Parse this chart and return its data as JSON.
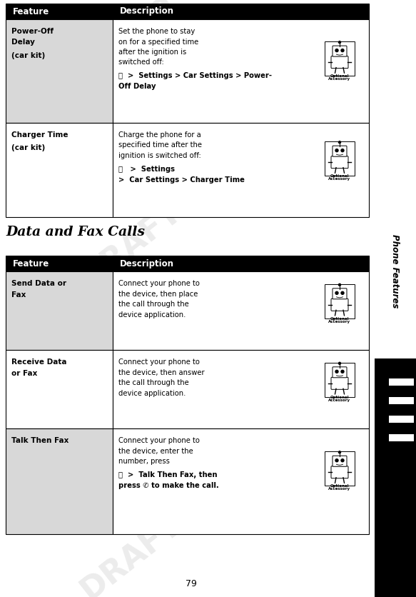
{
  "page_number": "79",
  "side_label": "Phone Features",
  "section1_rows": [
    {
      "feature_lines": [
        "Power-Off",
        "Delay",
        "",
        "(car kit)"
      ],
      "desc_normal": [
        "Set the phone to stay",
        "on for a specified time",
        "after the ignition is",
        "switched off:"
      ],
      "desc_bold_line1": "ⓢ  >  Settings > Car Settings > Power-",
      "desc_bold_line2": "Off Delay",
      "has_icon": true
    },
    {
      "feature_lines": [
        "Charger Time",
        "",
        "(car kit)"
      ],
      "desc_normal": [
        "Charge the phone for a",
        "specified time after the",
        "ignition is switched off:"
      ],
      "desc_bold_line1": "ⓢ   >  Settings",
      "desc_bold_line2": ">  Car Settings > Charger Time",
      "has_icon": true
    }
  ],
  "section_title": "Data and Fax Calls",
  "section2_rows": [
    {
      "feature_lines": [
        "Send Data or",
        "Fax"
      ],
      "desc_normal": [
        "Connect your phone to",
        "the device, then place",
        "the call through the",
        "device application."
      ],
      "desc_bold_line1": null,
      "desc_bold_line2": null,
      "has_icon": true
    },
    {
      "feature_lines": [
        "Receive Data",
        "or Fax"
      ],
      "desc_normal": [
        "Connect your phone to",
        "the device, then answer",
        "the call through the",
        "device application."
      ],
      "desc_bold_line1": null,
      "desc_bold_line2": null,
      "has_icon": true
    },
    {
      "feature_lines": [
        "Talk Then Fax"
      ],
      "desc_normal": [
        "Connect your phone to",
        "the device, enter the",
        "number, press"
      ],
      "desc_bold_line1": "ⓢ  >  Talk Then Fax, then",
      "desc_bold_line2": "press ✆ to make the call.",
      "has_icon": true
    }
  ],
  "header_bg": "#000000",
  "header_fg": "#ffffff",
  "row_bg_odd": "#d8d8d8",
  "row_bg_even": "#ffffff",
  "border_color": "#000000",
  "body_bg": "#ffffff",
  "draft_color": "#c0c0c0",
  "draft_alpha": 0.3
}
